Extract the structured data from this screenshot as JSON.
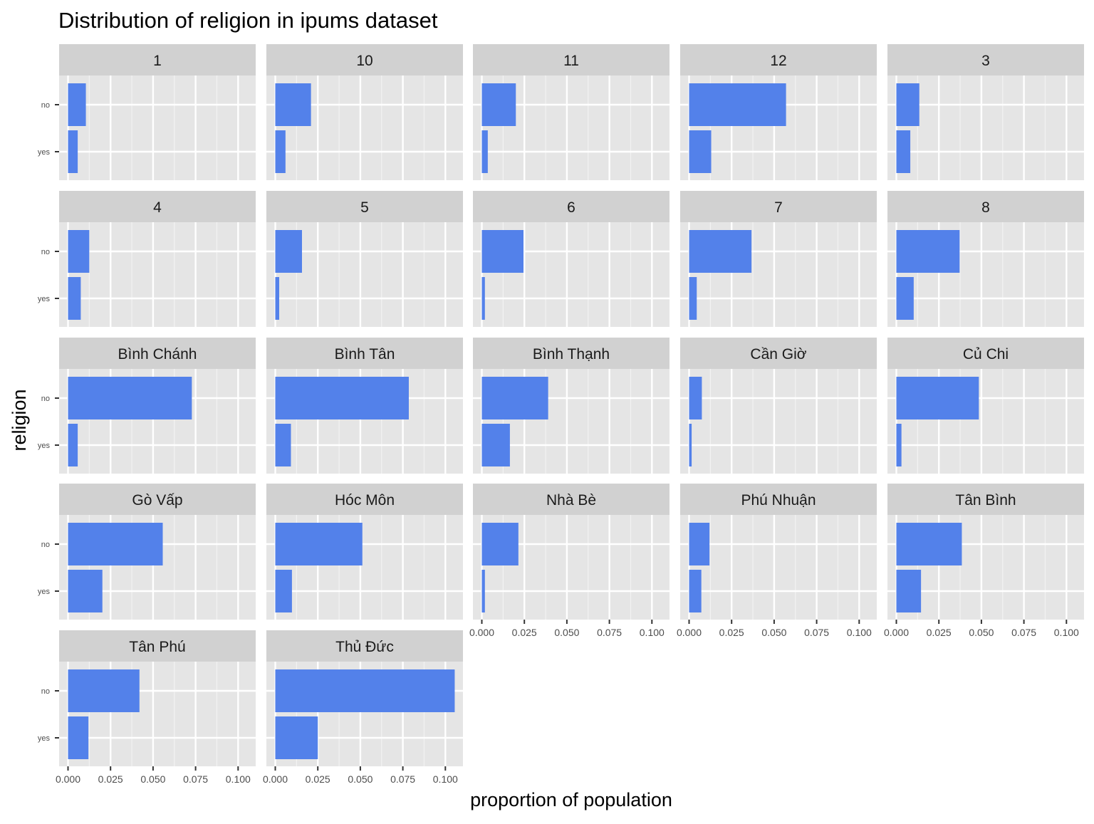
{
  "chart_data": {
    "type": "bar",
    "orientation": "horizontal",
    "title": "Distribution of religion in ipums dataset",
    "xlabel": "proportion of population",
    "ylabel": "religion",
    "categories": [
      "no",
      "yes"
    ],
    "xlim": [
      0,
      0.105
    ],
    "xticks": [
      "0.000",
      "0.025",
      "0.050",
      "0.075",
      "0.100"
    ],
    "xtick_values": [
      0,
      0.025,
      0.05,
      0.075,
      0.1
    ],
    "bar_color": "#5381EA",
    "panel_background": "#E5E5E5",
    "strip_background": "#D1D1D1",
    "grid": true,
    "facet_columns": 5,
    "facets": [
      {
        "label": "1",
        "values": [
          0.0105,
          0.0057
        ]
      },
      {
        "label": "10",
        "values": [
          0.021,
          0.006
        ]
      },
      {
        "label": "11",
        "values": [
          0.02,
          0.0035
        ]
      },
      {
        "label": "12",
        "values": [
          0.057,
          0.013
        ]
      },
      {
        "label": "3",
        "values": [
          0.0135,
          0.0082
        ]
      },
      {
        "label": "4",
        "values": [
          0.0125,
          0.0075
        ]
      },
      {
        "label": "5",
        "values": [
          0.0157,
          0.0023
        ]
      },
      {
        "label": "6",
        "values": [
          0.0245,
          0.0018
        ]
      },
      {
        "label": "7",
        "values": [
          0.0367,
          0.0045
        ]
      },
      {
        "label": "8",
        "values": [
          0.0372,
          0.0102
        ]
      },
      {
        "label": "Bình Chánh",
        "values": [
          0.0728,
          0.0057
        ]
      },
      {
        "label": "Bình Tân",
        "values": [
          0.0785,
          0.0092
        ]
      },
      {
        "label": "Bình Thạnh",
        "values": [
          0.039,
          0.0165
        ]
      },
      {
        "label": "Cần Giờ",
        "values": [
          0.0075,
          0.0015
        ]
      },
      {
        "label": "Củ Chi",
        "values": [
          0.0485,
          0.003
        ]
      },
      {
        "label": "Gò Vấp",
        "values": [
          0.0557,
          0.0202
        ]
      },
      {
        "label": "Hóc Môn",
        "values": [
          0.0512,
          0.0098
        ]
      },
      {
        "label": "Nhà Bè",
        "values": [
          0.0215,
          0.0018
        ]
      },
      {
        "label": "Phú Nhuận",
        "values": [
          0.012,
          0.0072
        ]
      },
      {
        "label": "Tân Bình",
        "values": [
          0.0385,
          0.0145
        ]
      },
      {
        "label": "Tân Phú",
        "values": [
          0.042,
          0.012
        ]
      },
      {
        "label": "Thủ Đức",
        "values": [
          0.1055,
          0.025
        ]
      }
    ]
  }
}
